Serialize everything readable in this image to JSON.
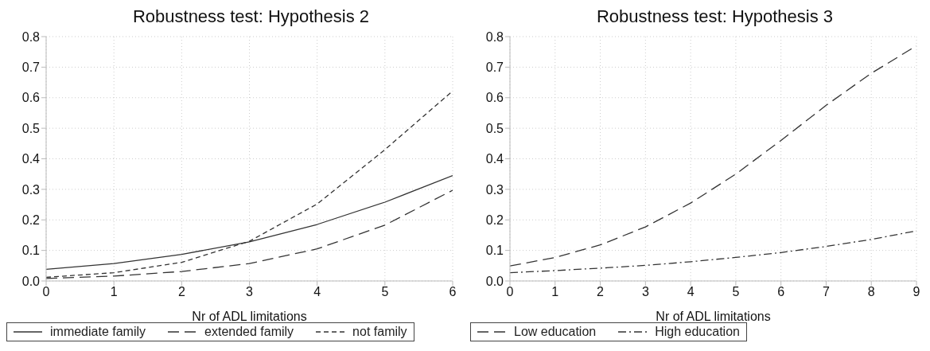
{
  "chart_data": [
    {
      "type": "line",
      "title": "Robustness test: Hypothesis 2",
      "xlabel": "Nr of ADL limitations",
      "x": [
        0,
        1,
        2,
        3,
        4,
        5,
        6
      ],
      "xlim": [
        0,
        6
      ],
      "xticks": [
        0,
        1,
        2,
        3,
        4,
        5,
        6
      ],
      "ylim": [
        0,
        0.8
      ],
      "yticks": [
        {
          "value": 0,
          "label": "0.0"
        },
        0.1,
        0.2,
        0.3,
        0.4,
        0.5,
        0.6,
        0.7,
        0.8
      ],
      "grid": true,
      "legend": "bottom",
      "series": [
        {
          "name": "immediate family",
          "color": "#333333",
          "line_style": "solid",
          "values": [
            0.038,
            0.057,
            0.087,
            0.128,
            0.185,
            0.258,
            0.345
          ]
        },
        {
          "name": "extended family",
          "color": "#333333",
          "line_style": "longdash",
          "values": [
            0.008,
            0.016,
            0.031,
            0.057,
            0.105,
            0.183,
            0.297
          ]
        },
        {
          "name": "not family",
          "color": "#333333",
          "line_style": "dashed",
          "values": [
            0.012,
            0.027,
            0.061,
            0.13,
            0.252,
            0.43,
            0.622
          ]
        }
      ]
    },
    {
      "type": "line",
      "title": "Robustness test: Hypothesis 3",
      "xlabel": "Nr of ADL limitations",
      "x": [
        0,
        1,
        2,
        3,
        4,
        5,
        6,
        7,
        8,
        9
      ],
      "xlim": [
        0,
        9
      ],
      "xticks": [
        0,
        1,
        2,
        3,
        4,
        5,
        6,
        7,
        8,
        9
      ],
      "ylim": [
        0,
        0.8
      ],
      "yticks": [
        {
          "value": 0,
          "label": "0.0"
        },
        0.1,
        0.2,
        0.3,
        0.4,
        0.5,
        0.6,
        0.7,
        0.8
      ],
      "grid": true,
      "legend": "bottom",
      "series": [
        {
          "name": "Low education",
          "color": "#333333",
          "line_style": "longdash",
          "values": [
            0.049,
            0.077,
            0.118,
            0.177,
            0.255,
            0.35,
            0.46,
            0.575,
            0.68,
            0.77
          ]
        },
        {
          "name": "High education",
          "color": "#333333",
          "line_style": "dashdot",
          "values": [
            0.027,
            0.034,
            0.042,
            0.051,
            0.063,
            0.077,
            0.093,
            0.113,
            0.136,
            0.164
          ]
        }
      ]
    }
  ]
}
